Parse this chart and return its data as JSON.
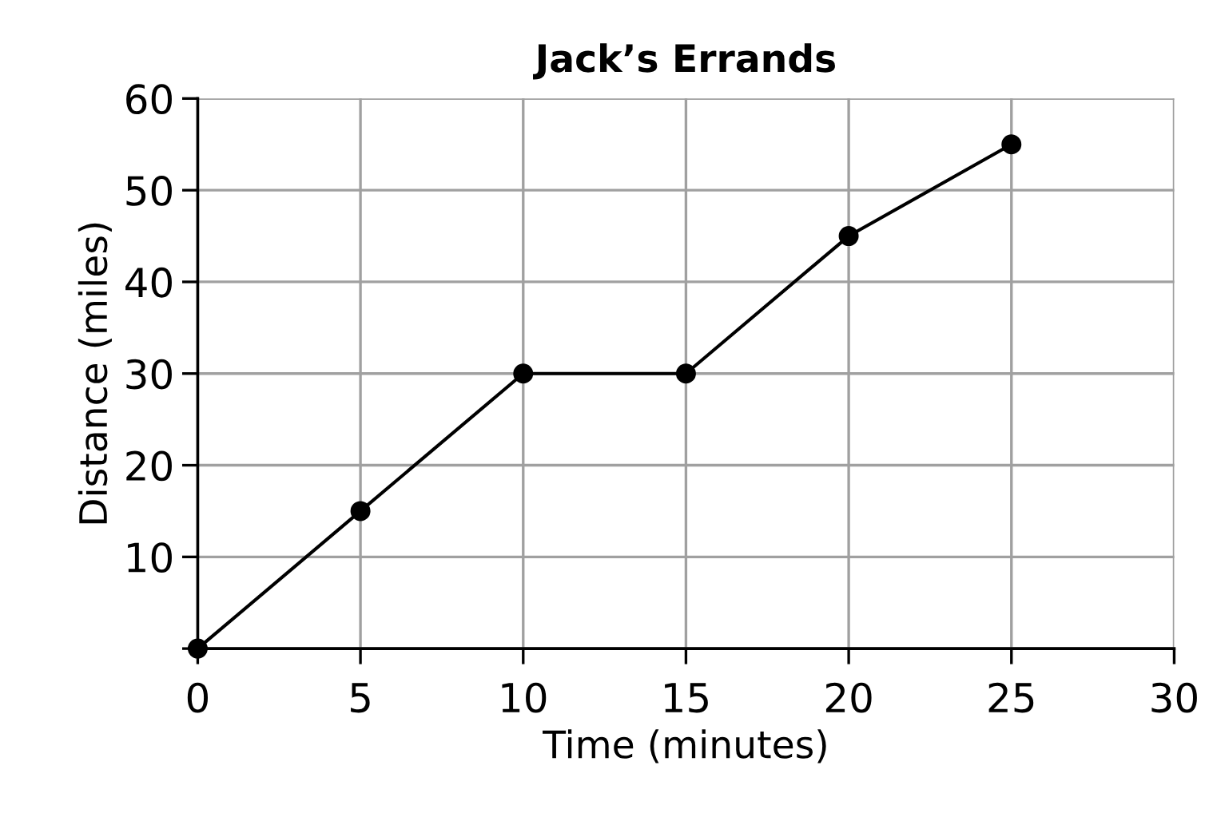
{
  "chart_data": {
    "type": "line",
    "title": "Jack’s Errands",
    "xlabel": "Time (minutes)",
    "ylabel": "Distance (miles)",
    "x": [
      0,
      5,
      10,
      15,
      20,
      25
    ],
    "series": [
      {
        "color": "#000000",
        "values": [
          0,
          15,
          30,
          30,
          45,
          55
        ]
      }
    ],
    "marker": "circle",
    "line_style": "solid",
    "xlim": [
      0,
      30
    ],
    "xticks": [
      0,
      5,
      10,
      15,
      20,
      25,
      30
    ],
    "ylim": [
      0,
      60
    ],
    "yticks": [
      {
        "value": 0,
        "label": null
      },
      10,
      20,
      30,
      40,
      50,
      60
    ],
    "grid": true
  }
}
